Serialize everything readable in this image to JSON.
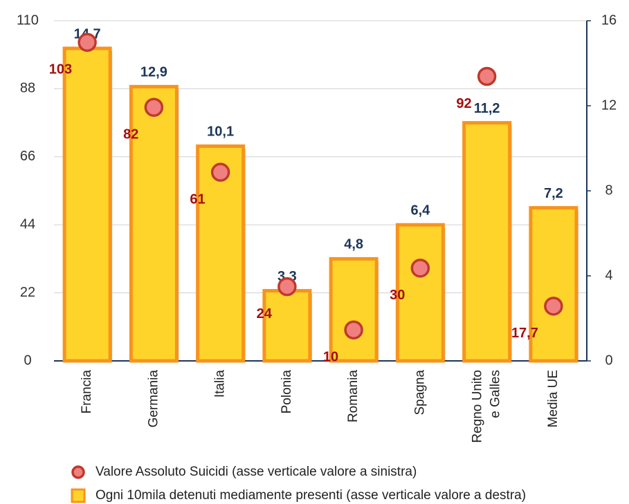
{
  "chart_data": {
    "type": "bar",
    "categories": [
      "Francia",
      "Germania",
      "Italia",
      "Polonia",
      "Romania",
      "Spagna",
      "Regno Unito\ne Galles",
      "Media UE"
    ],
    "series": [
      {
        "name": "Valore Assoluto Suicidi (asse verticale valore a sinistra)",
        "type": "scatter",
        "axis": "y",
        "color": "#f08080",
        "values": [
          103,
          82,
          61,
          24,
          10,
          30,
          92,
          17.7
        ],
        "value_labels": [
          "103",
          "82",
          "61",
          "24",
          "10",
          "30",
          "92",
          "17,7"
        ]
      },
      {
        "name": "Ogni 10mila detenuti mediamente presenti (asse verticale valore a destra)",
        "type": "bar",
        "axis": "y2",
        "color": "#ffd42a",
        "values": [
          14.7,
          12.9,
          10.1,
          3.3,
          4.8,
          6.4,
          11.2,
          7.2
        ],
        "value_labels": [
          "14,7",
          "12,9",
          "10,1",
          "3,3",
          "4,8",
          "6,4",
          "11,2",
          "7,2"
        ]
      }
    ],
    "ylim": [
      0,
      110
    ],
    "yticks": [
      0,
      22,
      44,
      66,
      88,
      110
    ],
    "y2lim": [
      0,
      16
    ],
    "y2ticks": [
      0,
      4,
      8,
      12,
      16
    ],
    "grid": true,
    "legend": "bottom"
  }
}
